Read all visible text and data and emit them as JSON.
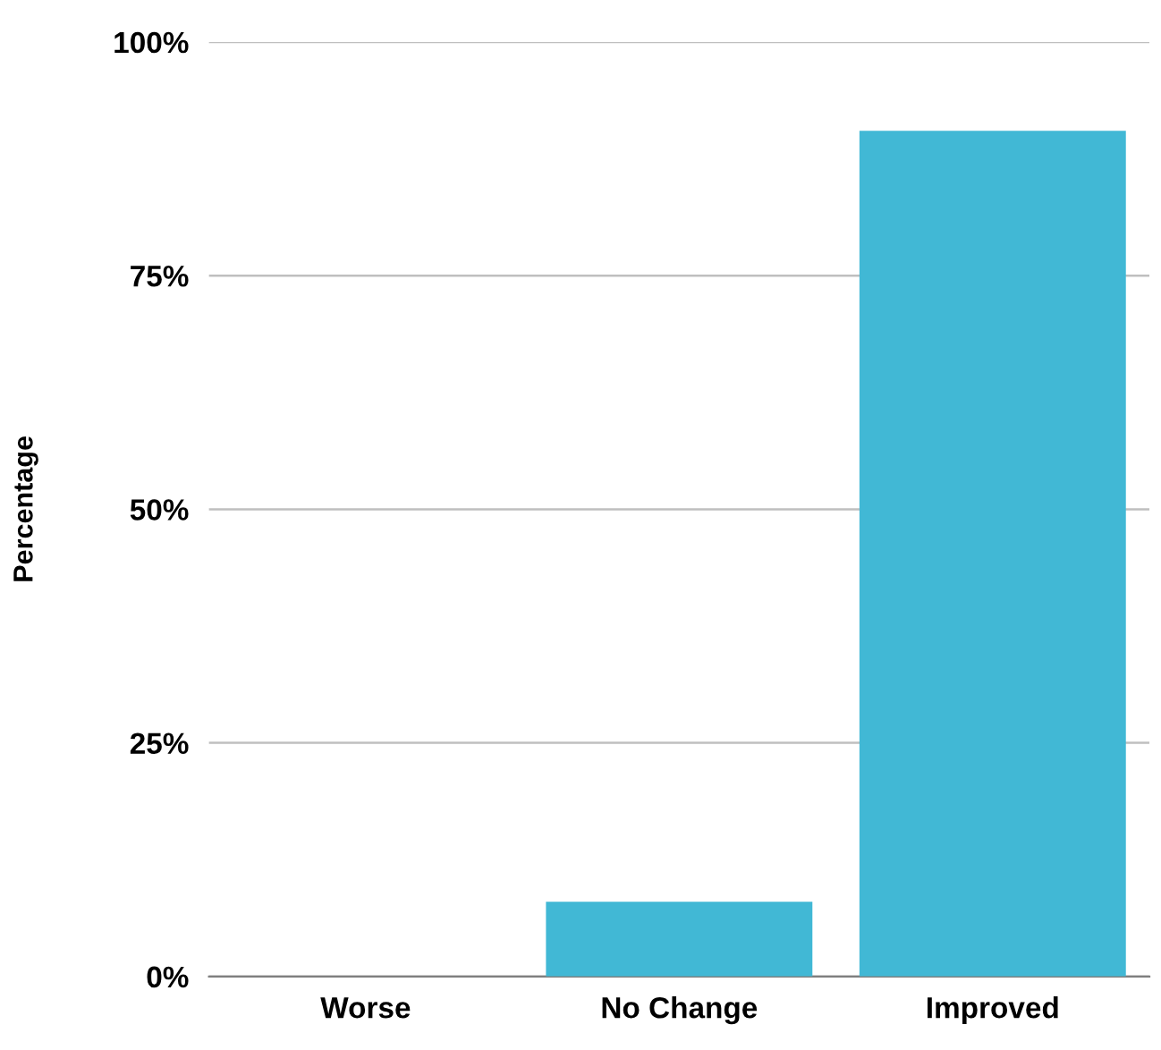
{
  "chart_data": {
    "type": "bar",
    "ylabel": "Percentage",
    "categories": [
      "Worse",
      "No Change",
      "Improved"
    ],
    "values": [
      0,
      8,
      90.5
    ],
    "color": "#41b8d5",
    "ylim": [
      0,
      100
    ],
    "yticks": [
      {
        "value": 0,
        "label": "0%"
      },
      {
        "value": 25,
        "label": "25%"
      },
      {
        "value": 50,
        "label": "50%"
      },
      {
        "value": 75,
        "label": "75%"
      },
      {
        "value": 100,
        "label": "100%"
      }
    ],
    "grid": "y",
    "legend": false
  }
}
